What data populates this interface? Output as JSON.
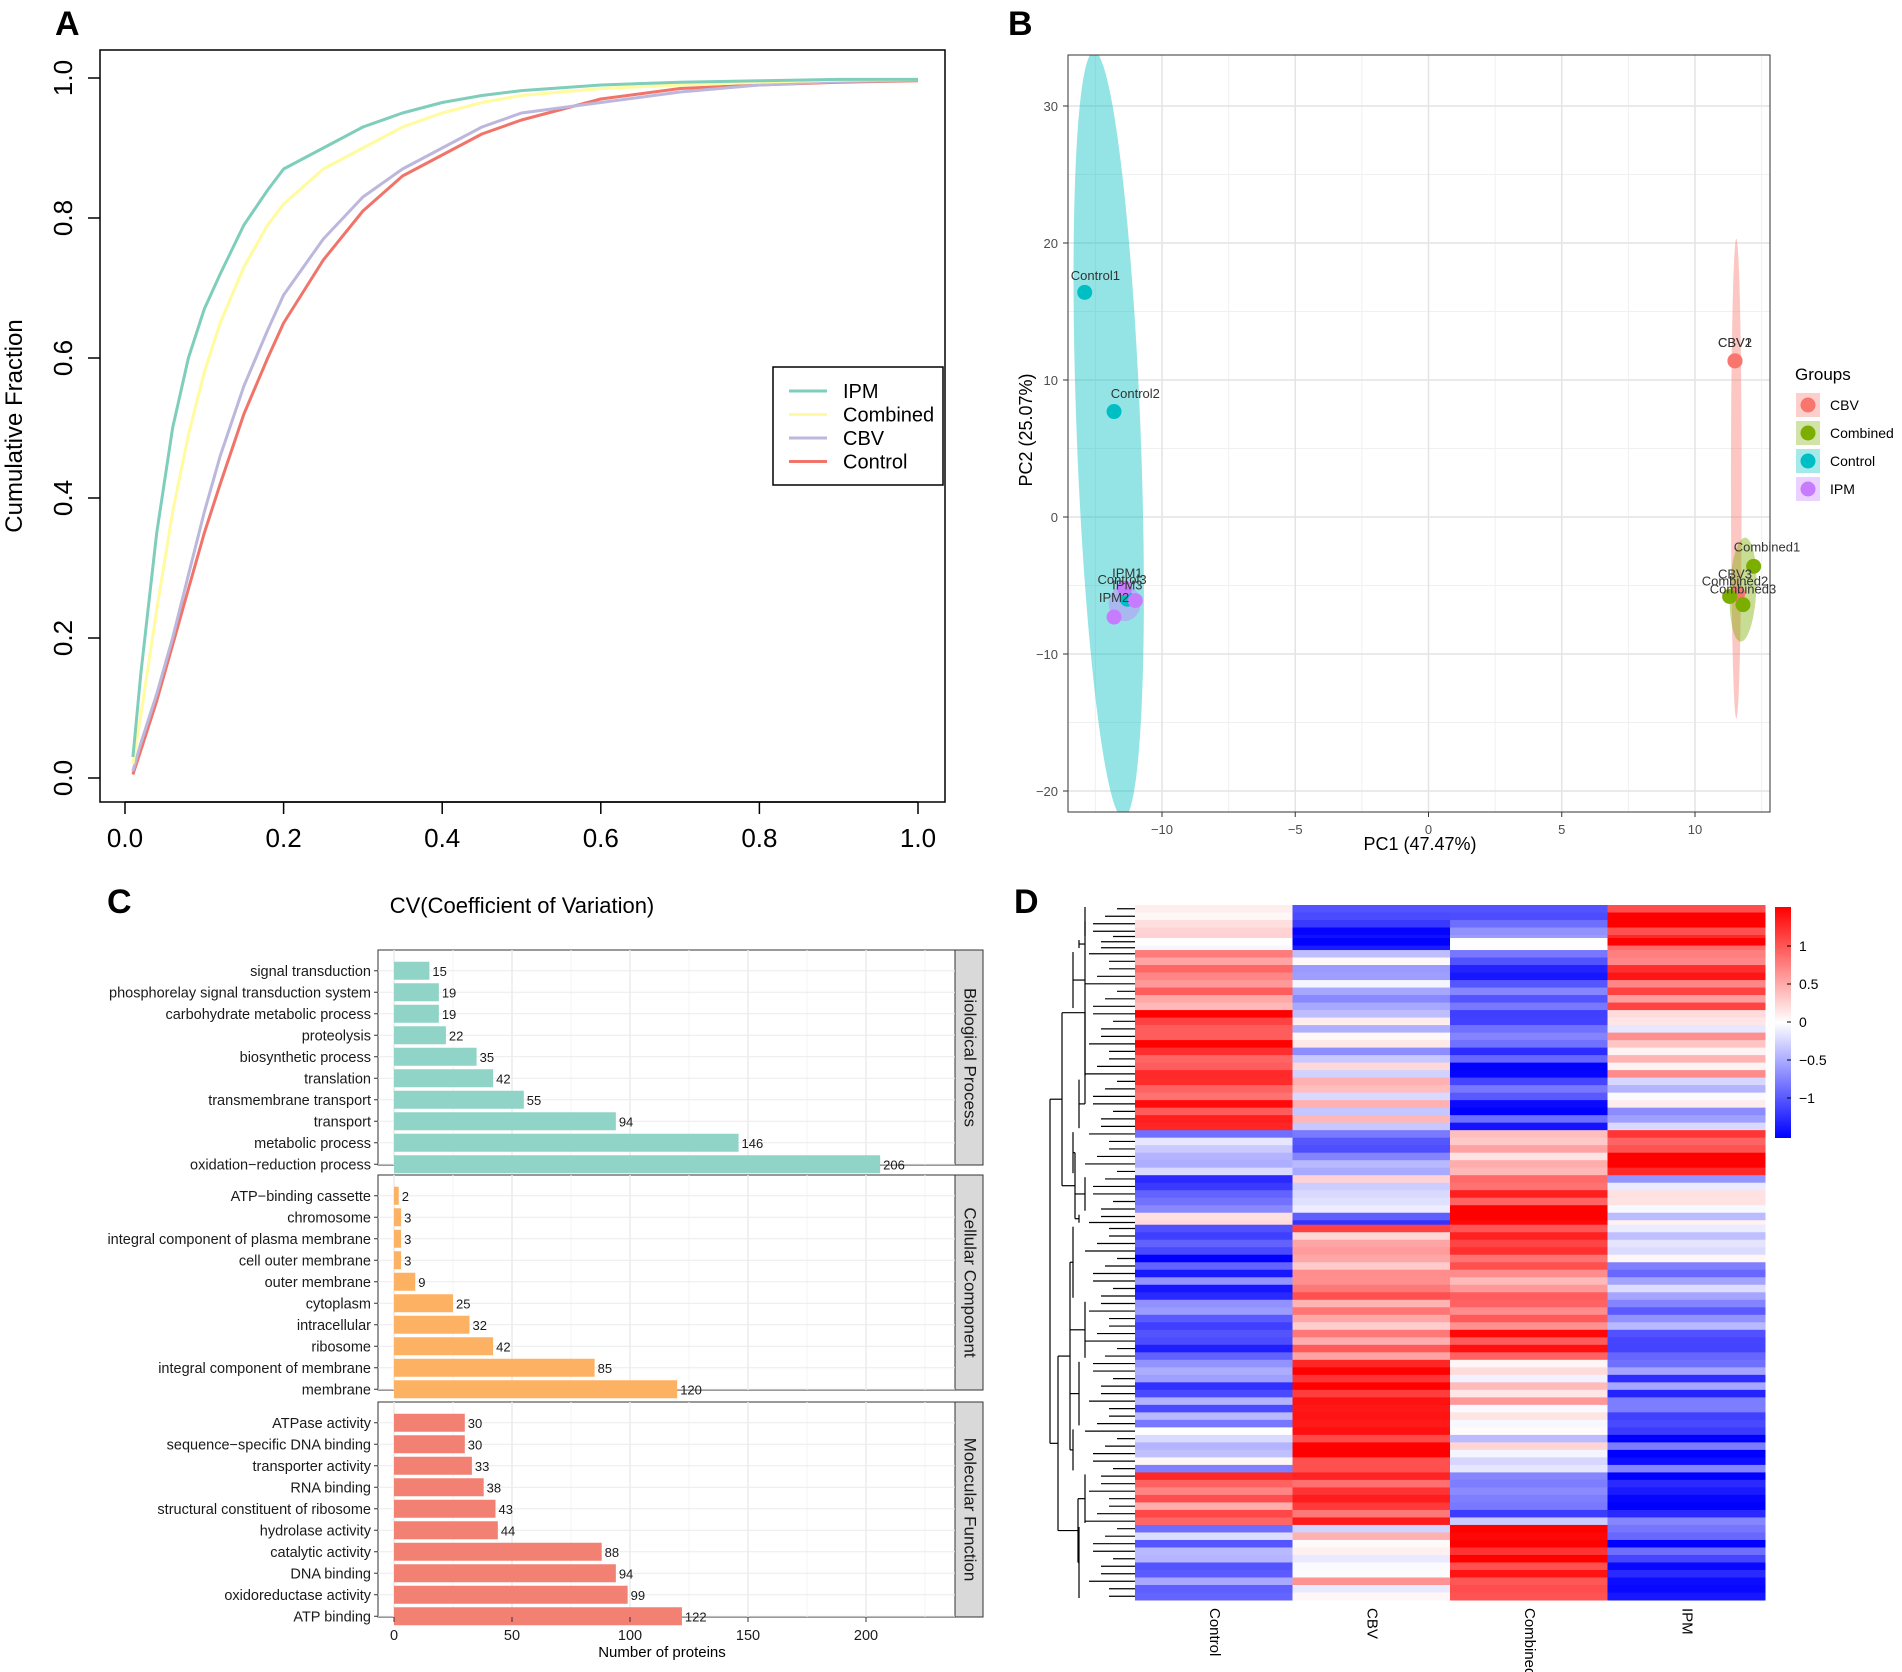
{
  "panels": {
    "A": "A",
    "B": "B",
    "C": "C",
    "D": "D"
  },
  "colors": {
    "IPM": "#7fcdbb",
    "Combined": "#fffb9e",
    "CBV": "#bcb7dc",
    "Control": "#f0746a",
    "pca_CBV": "#f8766d",
    "pca_Combined": "#7cae00",
    "pca_Control": "#00bfc4",
    "pca_IPM": "#c77cff",
    "bp": "#8fd4c6",
    "cc": "#fdb162",
    "mf": "#f28073",
    "heat_high": "#ff0000",
    "heat_mid": "#ffffff",
    "heat_low": "#0000ff"
  },
  "chart_data": [
    {
      "id": "A",
      "type": "line",
      "title": "",
      "xlabel": "",
      "ylabel": "Cumulative Fraction",
      "xlim": [
        0,
        1.0
      ],
      "ylim": [
        0,
        1.0
      ],
      "xticks": [
        "0.0",
        "0.2",
        "0.4",
        "0.6",
        "0.8",
        "1.0"
      ],
      "yticks": [
        "0.0",
        "0.2",
        "0.4",
        "0.6",
        "0.8",
        "1.0"
      ],
      "legend_position": "center-right",
      "series": [
        {
          "name": "IPM",
          "x": [
            0.01,
            0.02,
            0.04,
            0.06,
            0.08,
            0.1,
            0.12,
            0.15,
            0.18,
            0.2,
            0.25,
            0.3,
            0.35,
            0.4,
            0.45,
            0.5,
            0.6,
            0.7,
            0.8,
            0.9,
            1.0
          ],
          "y": [
            0.03,
            0.15,
            0.35,
            0.5,
            0.6,
            0.67,
            0.72,
            0.79,
            0.84,
            0.87,
            0.9,
            0.93,
            0.95,
            0.965,
            0.975,
            0.982,
            0.99,
            0.994,
            0.996,
            0.998,
            0.998
          ]
        },
        {
          "name": "Combined",
          "x": [
            0.01,
            0.02,
            0.04,
            0.06,
            0.08,
            0.1,
            0.12,
            0.15,
            0.18,
            0.2,
            0.25,
            0.3,
            0.35,
            0.4,
            0.45,
            0.5,
            0.6,
            0.7,
            0.8,
            0.9,
            1.0
          ],
          "y": [
            0.02,
            0.09,
            0.24,
            0.38,
            0.49,
            0.58,
            0.65,
            0.73,
            0.79,
            0.82,
            0.87,
            0.9,
            0.93,
            0.95,
            0.965,
            0.975,
            0.985,
            0.99,
            0.994,
            0.997,
            0.998
          ]
        },
        {
          "name": "CBV",
          "x": [
            0.01,
            0.02,
            0.04,
            0.06,
            0.08,
            0.1,
            0.12,
            0.15,
            0.18,
            0.2,
            0.25,
            0.3,
            0.35,
            0.4,
            0.45,
            0.5,
            0.6,
            0.7,
            0.8,
            0.9,
            1.0
          ],
          "y": [
            0.01,
            0.05,
            0.12,
            0.2,
            0.29,
            0.38,
            0.46,
            0.56,
            0.64,
            0.69,
            0.77,
            0.83,
            0.87,
            0.9,
            0.93,
            0.95,
            0.965,
            0.98,
            0.99,
            0.995,
            0.997
          ]
        },
        {
          "name": "Control",
          "x": [
            0.01,
            0.02,
            0.04,
            0.06,
            0.08,
            0.1,
            0.12,
            0.15,
            0.18,
            0.2,
            0.25,
            0.3,
            0.35,
            0.4,
            0.45,
            0.5,
            0.6,
            0.7,
            0.8,
            0.9,
            1.0
          ],
          "y": [
            0.005,
            0.04,
            0.11,
            0.19,
            0.27,
            0.35,
            0.42,
            0.52,
            0.6,
            0.65,
            0.74,
            0.81,
            0.86,
            0.89,
            0.92,
            0.94,
            0.97,
            0.985,
            0.99,
            0.994,
            0.996
          ]
        }
      ]
    },
    {
      "id": "B",
      "type": "scatter",
      "xlabel": "PC1 (47.47%)",
      "ylabel": "PC2 (25.07%)",
      "xlim": [
        -14,
        13
      ],
      "ylim": [
        -21,
        33.5
      ],
      "xticks": [
        -10,
        -5,
        0,
        5,
        10
      ],
      "yticks": [
        -20,
        -10,
        0,
        10,
        20,
        30
      ],
      "xtick_labels": [
        "−10",
        "−5",
        "0",
        "5",
        "10"
      ],
      "ytick_labels": [
        "−20",
        "−10",
        "0",
        "10",
        "20",
        "30"
      ],
      "legend_title": "Groups",
      "legend": [
        "CBV",
        "Combined",
        "Control",
        "IPM"
      ],
      "points": [
        {
          "label": "Control1",
          "group": "Control",
          "x": -12.9,
          "y": 16.4
        },
        {
          "label": "Control2",
          "group": "Control",
          "x": -11.8,
          "y": 7.7
        },
        {
          "label": "Control3",
          "group": "Control",
          "x": -11.3,
          "y": -6.0
        },
        {
          "label": "IPM1",
          "group": "IPM",
          "x": -11.4,
          "y": -5.2
        },
        {
          "label": "IPM2",
          "group": "IPM",
          "x": -11.8,
          "y": -7.3
        },
        {
          "label": "IPM3",
          "group": "IPM",
          "x": -11.0,
          "y": -6.1
        },
        {
          "label": "CBV1",
          "group": "CBV",
          "x": 11.5,
          "y": 11.4
        },
        {
          "label": "CBV2",
          "group": "CBV",
          "x": 11.5,
          "y": 11.4
        },
        {
          "label": "CBV3",
          "group": "CBV",
          "x": 11.6,
          "y": -5.6
        },
        {
          "label": "Combined1",
          "group": "Combined",
          "x": 12.2,
          "y": -3.6
        },
        {
          "label": "Combined2",
          "group": "Combined",
          "x": 11.3,
          "y": -5.8
        },
        {
          "label": "Combined3",
          "group": "Combined",
          "x": 11.8,
          "y": -6.4
        }
      ],
      "point_labels": [
        {
          "text": "Control1",
          "x": -12.5,
          "y": 17.3
        },
        {
          "text": "Control2",
          "x": -11.0,
          "y": 8.7
        },
        {
          "text": "IPM1",
          "x": -11.3,
          "y": -4.4
        },
        {
          "text": "Control3",
          "x": -11.5,
          "y": -4.9
        },
        {
          "text": "IPM3",
          "x": -11.3,
          "y": -5.3
        },
        {
          "text": "IPM2",
          "x": -11.8,
          "y": -6.2
        },
        {
          "text": "CBV1",
          "x": 11.5,
          "y": 12.4
        },
        {
          "text": "CBV2",
          "x": 11.5,
          "y": 12.4
        },
        {
          "text": "Combined1",
          "x": 12.7,
          "y": -2.5
        },
        {
          "text": "CBV3",
          "x": 11.5,
          "y": -4.5
        },
        {
          "text": "Combined2",
          "x": 11.5,
          "y": -5.0
        },
        {
          "text": "Combined3",
          "x": 11.8,
          "y": -5.6
        }
      ],
      "ellipses": [
        {
          "group": "Control",
          "cx": -12.0,
          "cy": 6.0,
          "semi_major_y": 28,
          "semi_minor_x": 1.2,
          "tilt": -2.2
        },
        {
          "group": "IPM",
          "cx": -11.4,
          "cy": -6.3,
          "semi_major_y": 1.3,
          "semi_minor_x": 0.6,
          "tilt": 0
        },
        {
          "group": "CBV",
          "cx": 11.55,
          "cy": 2.8,
          "semi_major_y": 17.5,
          "semi_minor_x": 0.2,
          "tilt": 0
        },
        {
          "group": "Combined",
          "cx": 11.8,
          "cy": -5.3,
          "semi_major_y": 3.8,
          "semi_minor_x": 0.5,
          "tilt": 2.5
        }
      ]
    },
    {
      "id": "C",
      "type": "bar",
      "orientation": "horizontal",
      "title": "CV(Coefficient of Variation)",
      "xlabel": "Number of proteins",
      "xlim": [
        -10,
        230
      ],
      "xticks": [
        0,
        50,
        100,
        150,
        200
      ],
      "facets": [
        {
          "name": "Biological Process",
          "categories": [
            "signal transduction",
            "phosphorelay signal transduction system",
            "carbohydrate metabolic process",
            "proteolysis",
            "biosynthetic process",
            "translation",
            "transmembrane transport",
            "transport",
            "metabolic process",
            "oxidation−reduction process"
          ],
          "values": [
            15,
            19,
            19,
            22,
            35,
            42,
            55,
            94,
            146,
            206
          ]
        },
        {
          "name": "Cellular Component",
          "categories": [
            "ATP−binding cassette",
            "chromosome",
            "integral component of plasma membrane",
            "cell outer membrane",
            "outer membrane",
            "cytoplasm",
            "intracellular",
            "ribosome",
            "integral component of membrane",
            "membrane"
          ],
          "values": [
            2,
            3,
            3,
            3,
            9,
            25,
            32,
            42,
            85,
            120
          ]
        },
        {
          "name": "Molecular Function",
          "categories": [
            "ATPase activity",
            "sequence−specific DNA binding",
            "transporter activity",
            "RNA binding",
            "structural constituent of ribosome",
            "hydrolase activity",
            "catalytic activity",
            "DNA binding",
            "oxidoreductase activity",
            "ATP binding"
          ],
          "values": [
            30,
            30,
            33,
            38,
            43,
            44,
            88,
            94,
            99,
            122
          ]
        }
      ]
    },
    {
      "id": "D",
      "type": "heatmap",
      "columns": [
        "Control",
        "CBV",
        "Combined",
        "IPM"
      ],
      "colorbar_ticks": [
        1,
        0.5,
        0,
        -0.5,
        -1
      ],
      "colorbar_labels": [
        "1",
        "0.5",
        "0",
        "−0.5",
        "−1"
      ],
      "blocks": [
        {
          "rows": 22,
          "values": [
            0.1,
            -1.0,
            -0.6,
            1.2
          ]
        },
        {
          "rows": 8,
          "values": [
            0.3,
            -1.2,
            -0.4,
            1.1
          ]
        },
        {
          "rows": 40,
          "values": [
            0.8,
            -0.4,
            -0.9,
            0.9
          ]
        },
        {
          "rows": 45,
          "values": [
            1.1,
            -0.2,
            -1.0,
            0.2
          ]
        },
        {
          "rows": 35,
          "values": [
            1.2,
            0.1,
            -1.1,
            -0.2
          ]
        },
        {
          "rows": 30,
          "values": [
            -0.4,
            -0.6,
            0.6,
            1.3
          ]
        },
        {
          "rows": 25,
          "values": [
            -0.8,
            -0.1,
            1.2,
            -0.2
          ]
        },
        {
          "rows": 8,
          "values": [
            0.2,
            -1.3,
            1.1,
            -0.3
          ]
        },
        {
          "rows": 50,
          "values": [
            -1.0,
            0.6,
            0.8,
            -0.4
          ]
        },
        {
          "rows": 40,
          "values": [
            -0.9,
            0.7,
            1.0,
            -0.6
          ]
        },
        {
          "rows": 45,
          "values": [
            -0.8,
            1.2,
            0.3,
            -0.9
          ]
        },
        {
          "rows": 30,
          "values": [
            -0.3,
            1.1,
            0.0,
            -1.1
          ]
        },
        {
          "rows": 35,
          "values": [
            0.9,
            1.1,
            -0.7,
            -1.0
          ]
        },
        {
          "rows": 50,
          "values": [
            -0.5,
            0.2,
            1.3,
            -1.2
          ]
        }
      ]
    }
  ]
}
